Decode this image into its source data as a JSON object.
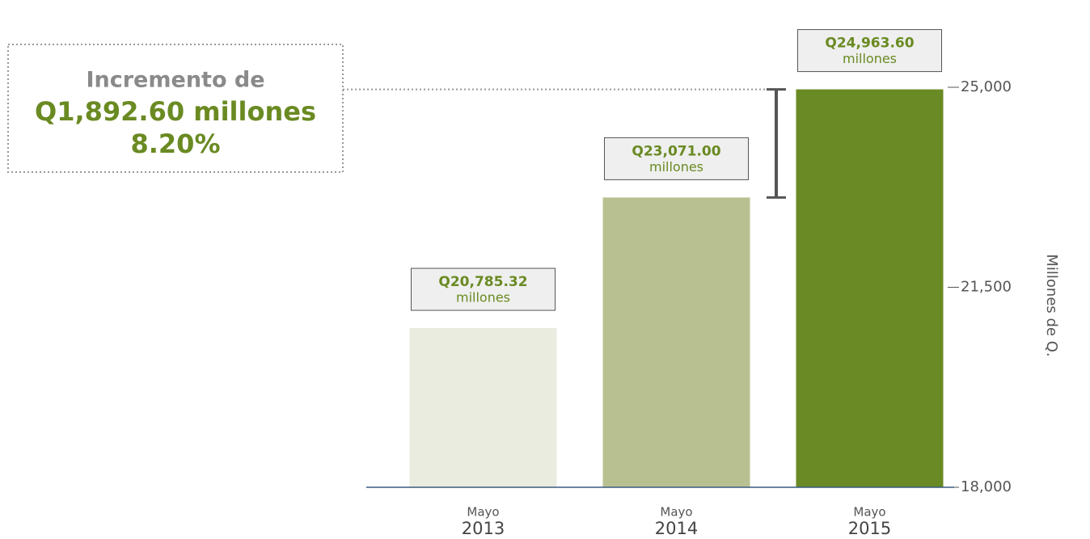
{
  "chart_data": {
    "type": "bar",
    "categories": [
      "2013",
      "2014",
      "2015"
    ],
    "category_months": [
      "Mayo",
      "Mayo",
      "Mayo"
    ],
    "values": [
      20785.32,
      23071.0,
      24963.6
    ],
    "value_labels": [
      "Q20,785.32",
      "Q23,071.00",
      "Q24,963.60"
    ],
    "value_unit_label": "millones",
    "colors": [
      "#eaecdf",
      "#b8c091",
      "#698a24"
    ],
    "ylim": [
      18000,
      25000
    ],
    "yticks": [
      {
        "value": 18000,
        "label": "18,000"
      },
      {
        "value": 21500,
        "label": "21,500"
      },
      {
        "value": 25000,
        "label": "25,000"
      }
    ],
    "ylabel": "Millones de Q.",
    "annotation": {
      "title": "Incremento de",
      "amount": "Q1,892.60 millones",
      "percent": "8.20%"
    }
  }
}
